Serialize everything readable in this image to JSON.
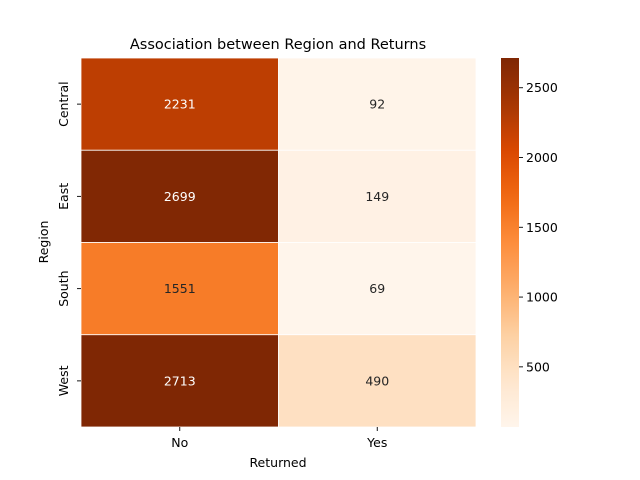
{
  "chart_data": {
    "type": "heatmap",
    "title": "Association between Region and Returns",
    "xlabel": "Returned",
    "ylabel": "Region",
    "x_categories": [
      "No",
      "Yes"
    ],
    "y_categories": [
      "Central",
      "East",
      "South",
      "West"
    ],
    "values": [
      [
        2231,
        92
      ],
      [
        2699,
        149
      ],
      [
        1551,
        69
      ],
      [
        2713,
        490
      ]
    ],
    "colormap": "Oranges",
    "colorbar": {
      "min": 69,
      "max": 2713,
      "ticks": [
        500,
        1000,
        1500,
        2000,
        2500
      ],
      "tick_labels": [
        "500",
        "1000",
        "1500",
        "2000",
        "2500"
      ]
    },
    "annotation_dark_color": "#262626",
    "annotation_light_color": "#ffffff",
    "cell_border_color": "#ffffff"
  }
}
